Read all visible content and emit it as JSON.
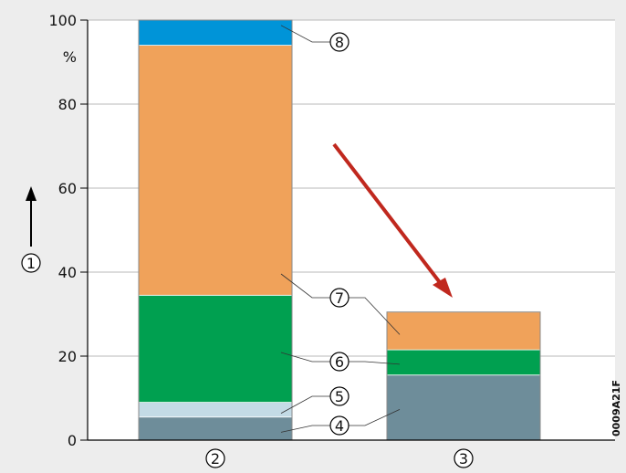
{
  "chart_data": {
    "type": "bar",
    "stacked": true,
    "ylim": [
      0,
      100
    ],
    "yticks": [
      0,
      20,
      40,
      60,
      80,
      100
    ],
    "y_unit": "%",
    "y_axis_marker": "1",
    "grid": "horizontal",
    "categories": [
      "2",
      "3"
    ],
    "segments": [
      {
        "label": "4",
        "color": "#6e8d9a",
        "values": [
          5.5,
          15.5
        ]
      },
      {
        "label": "5",
        "color": "#c3dbe6",
        "values": [
          3.5,
          0
        ]
      },
      {
        "label": "6",
        "color": "#00a050",
        "values": [
          25.5,
          6
        ]
      },
      {
        "label": "7",
        "color": "#f0a25a",
        "values": [
          59.5,
          9
        ]
      },
      {
        "label": "8",
        "color": "#0094d8",
        "values": [
          6,
          0
        ]
      }
    ],
    "annotations": [
      {
        "type": "arrow",
        "color": "#c0281e",
        "meaning": "decrease from column 2 to column 3"
      }
    ],
    "figure_id": "0009A21F"
  }
}
